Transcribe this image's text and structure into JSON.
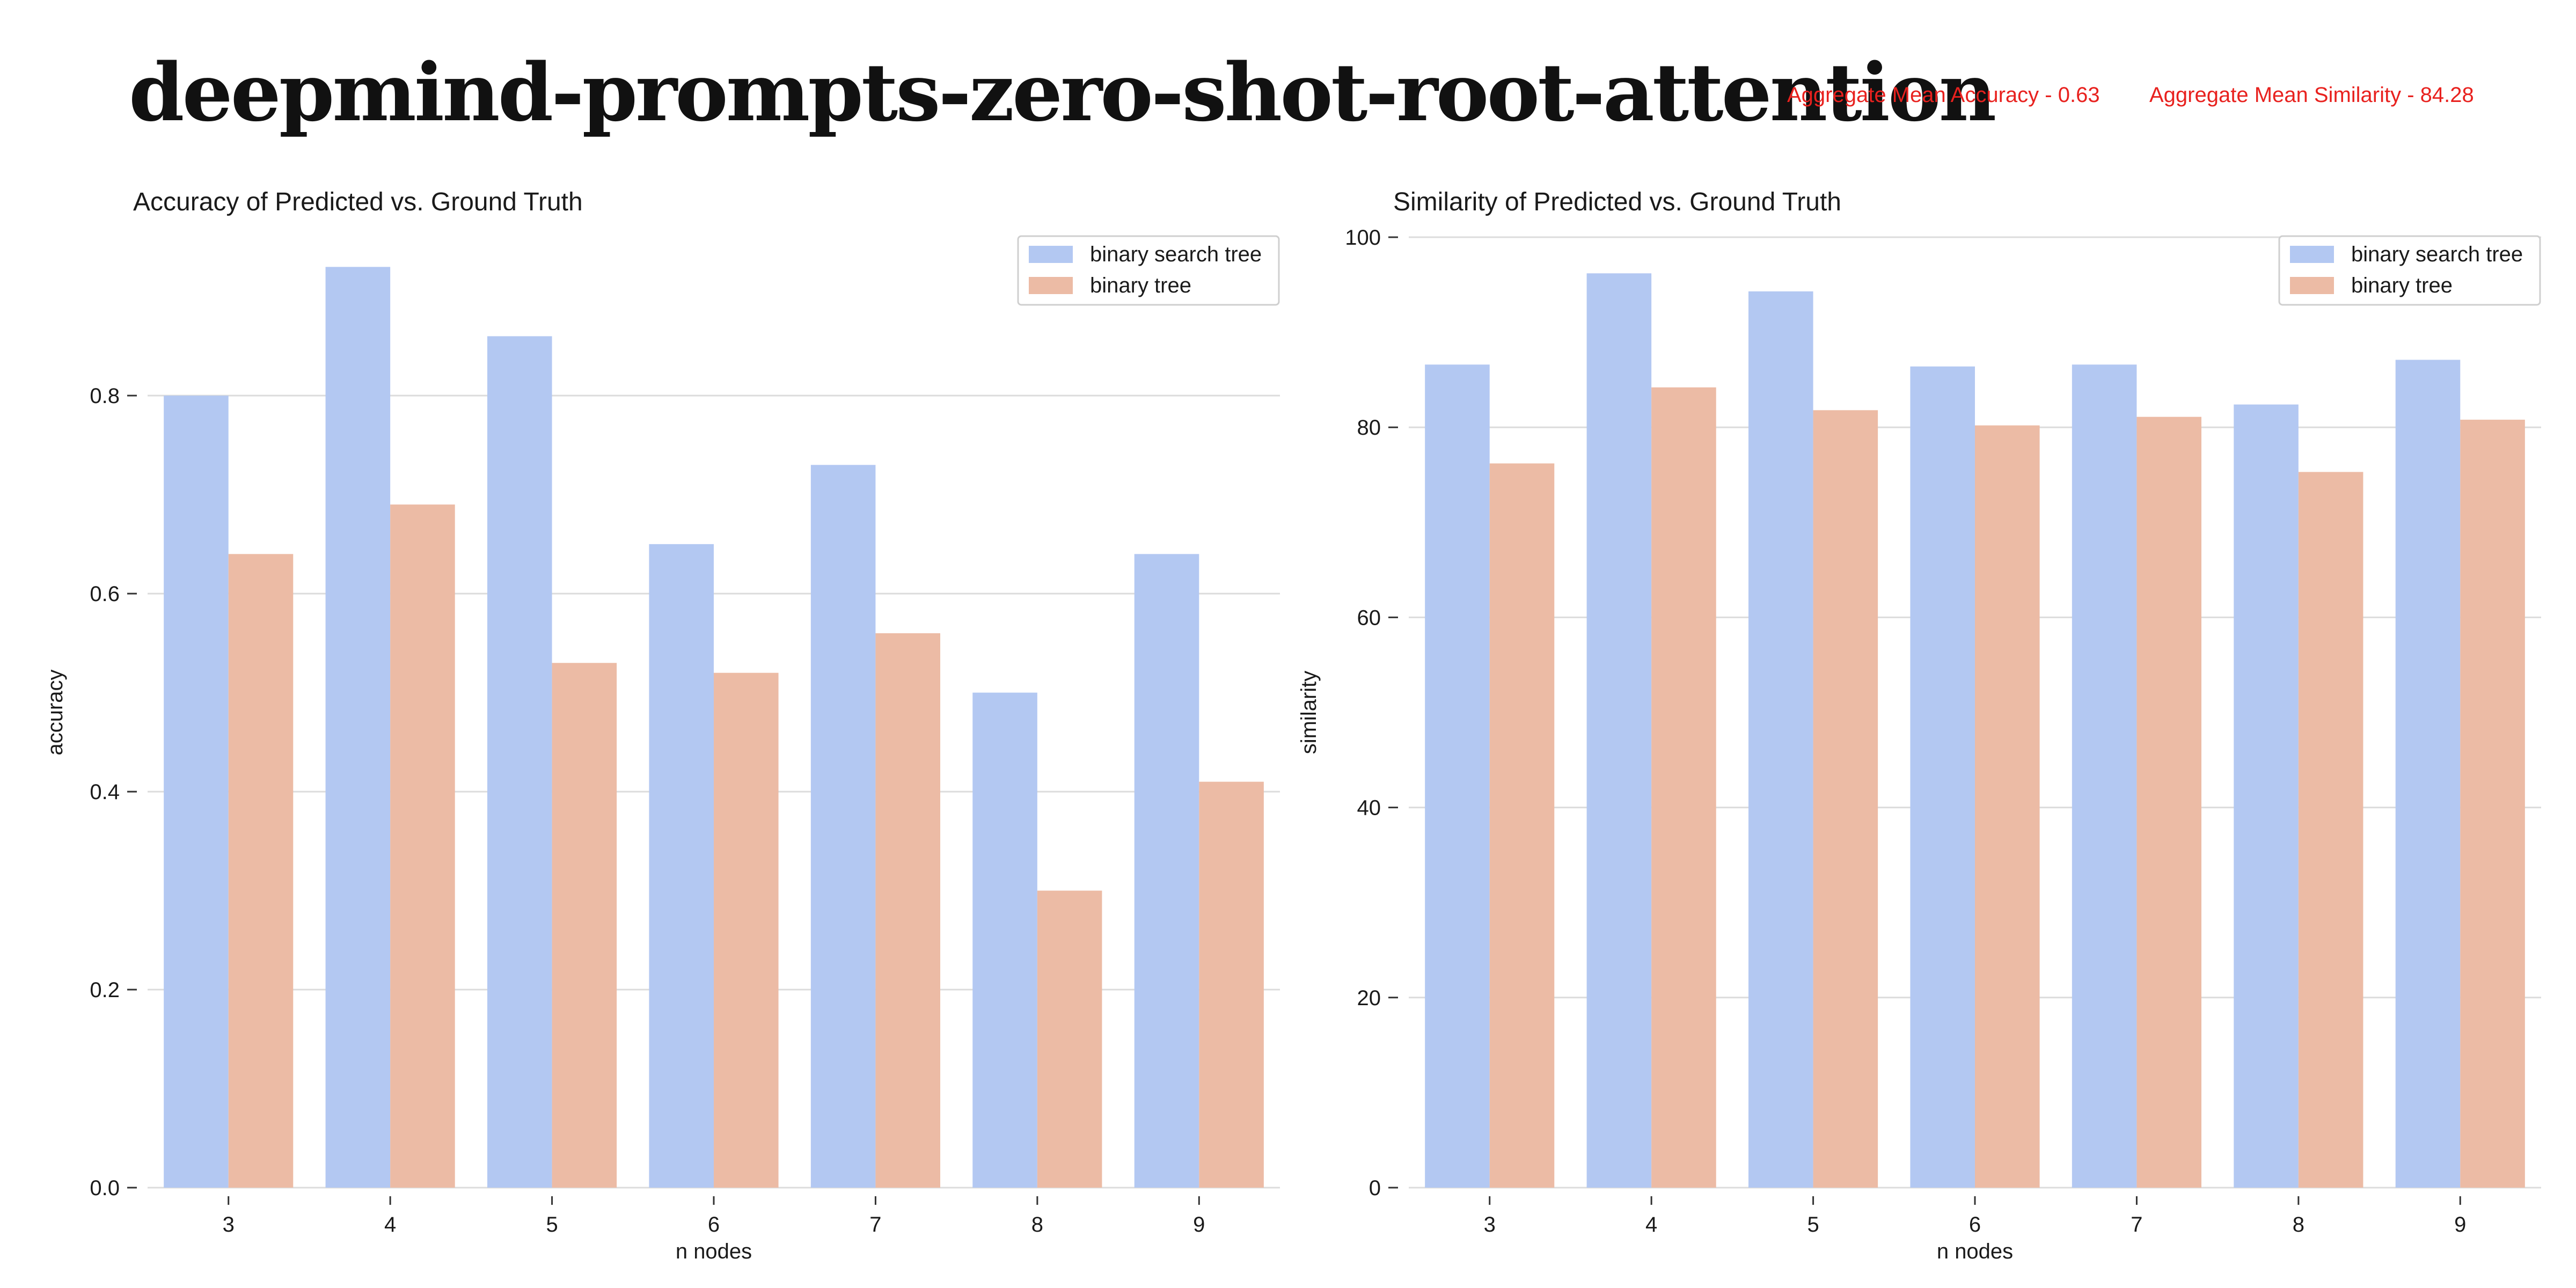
{
  "page": {
    "title": "deepmind-prompts-zero-shot-root-attention",
    "aggregate_accuracy": "Aggregate Mean Accuracy - 0.63",
    "aggregate_similarity": "Aggregate Mean Similarity - 84.28",
    "accent_color": "#e8211e"
  },
  "chart_data": [
    {
      "type": "bar",
      "title": "Accuracy of Predicted vs. Ground Truth",
      "xlabel": "n nodes",
      "ylabel": "accuracy",
      "categories": [
        "3",
        "4",
        "5",
        "6",
        "7",
        "8",
        "9"
      ],
      "yticks": [
        "0.0",
        "0.2",
        "0.4",
        "0.6",
        "0.8"
      ],
      "ylim": [
        0,
        0.96
      ],
      "grid": true,
      "legend_position": "top-right",
      "series": [
        {
          "name": "binary search tree",
          "color": "#b3c8f2",
          "values": [
            0.8,
            0.93,
            0.86,
            0.65,
            0.73,
            0.5,
            0.64
          ]
        },
        {
          "name": "binary tree",
          "color": "#ecbba5",
          "values": [
            0.64,
            0.69,
            0.53,
            0.52,
            0.56,
            0.3,
            0.41
          ]
        }
      ]
    },
    {
      "type": "bar",
      "title": "Similarity of Predicted vs. Ground Truth",
      "xlabel": "n nodes",
      "ylabel": "similarity",
      "categories": [
        "3",
        "4",
        "5",
        "6",
        "7",
        "8",
        "9"
      ],
      "yticks": [
        "0",
        "20",
        "40",
        "60",
        "80",
        "100"
      ],
      "ylim": [
        0,
        100
      ],
      "grid": true,
      "legend_position": "top-right",
      "series": [
        {
          "name": "binary search tree",
          "color": "#b3c8f2",
          "values": [
            86.6,
            96.2,
            94.3,
            86.4,
            86.6,
            82.4,
            87.1
          ]
        },
        {
          "name": "binary tree",
          "color": "#ecbba5",
          "values": [
            76.2,
            84.2,
            81.8,
            80.2,
            81.1,
            75.3,
            80.8
          ]
        }
      ]
    }
  ]
}
